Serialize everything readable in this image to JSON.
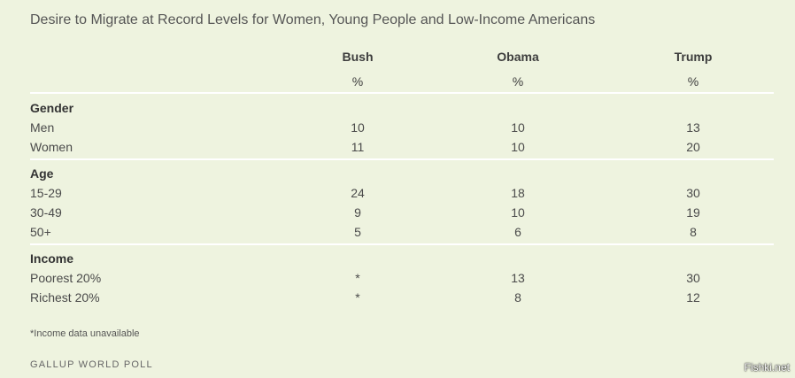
{
  "chart_data": {
    "type": "table",
    "title": "Desire to Migrate at Record Levels for Women, Young People and Low-Income Americans",
    "columns": [
      "Bush",
      "Obama",
      "Trump"
    ],
    "units": [
      "%",
      "%",
      "%"
    ],
    "groups": [
      {
        "label": "Gender",
        "rows": [
          {
            "label": "Men",
            "values": [
              "10",
              "10",
              "13"
            ]
          },
          {
            "label": "Women",
            "values": [
              "11",
              "10",
              "20"
            ]
          }
        ]
      },
      {
        "label": "Age",
        "rows": [
          {
            "label": "15-29",
            "values": [
              "24",
              "18",
              "30"
            ]
          },
          {
            "label": "30-49",
            "values": [
              "9",
              "10",
              "19"
            ]
          },
          {
            "label": "50+",
            "values": [
              "5",
              "6",
              "8"
            ]
          }
        ]
      },
      {
        "label": "Income",
        "rows": [
          {
            "label": "Poorest 20%",
            "values": [
              "*",
              "13",
              "30"
            ]
          },
          {
            "label": "Richest 20%",
            "values": [
              "*",
              "8",
              "12"
            ]
          }
        ]
      }
    ],
    "footnote": "*Income data unavailable",
    "source": "GALLUP WORLD POLL"
  },
  "watermark": "Fishki.net",
  "colors": {
    "background": "#eef3df",
    "rule": "#ffffff",
    "text": "#3d3d3d"
  }
}
